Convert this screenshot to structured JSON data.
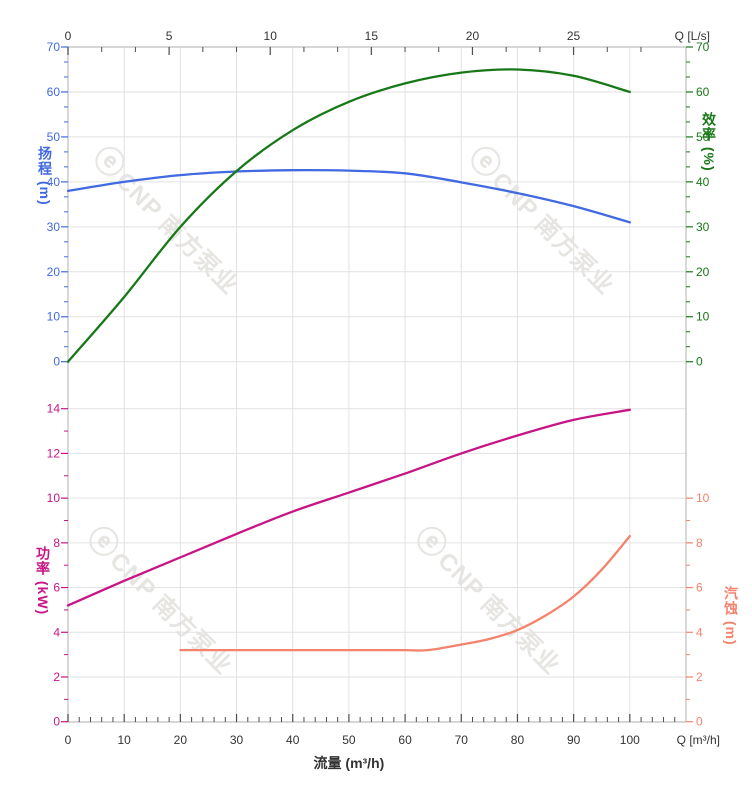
{
  "chart_data": {
    "type": "line",
    "description": "Pump performance curves: head & efficiency (top panel), power & NPSH (bottom panel) versus flow",
    "axes": {
      "flow_ls": {
        "label": "Q [L/s]",
        "ticks": [
          0,
          5,
          10,
          15,
          20,
          25
        ],
        "range": [
          0,
          30.56
        ],
        "position": "top",
        "color": "#333333"
      },
      "flow_m3h": {
        "label": "Q [m³/h]",
        "title": "流量 (m³/h)",
        "ticks": [
          0,
          10,
          20,
          30,
          40,
          50,
          60,
          70,
          80,
          90,
          100
        ],
        "range": [
          0,
          110
        ],
        "position": "bottom",
        "color": "#333333"
      },
      "head": {
        "label": "扬程 (m)",
        "color": "#4169E1",
        "ticks": [
          0,
          10,
          20,
          30,
          40,
          50,
          60,
          70
        ],
        "range": [
          0,
          70
        ],
        "side": "left",
        "panel": "top"
      },
      "efficiency": {
        "label": "效率 (%)",
        "color": "#187818",
        "ticks": [
          0,
          10,
          20,
          30,
          40,
          50,
          60,
          70
        ],
        "range": [
          0,
          70
        ],
        "side": "right",
        "panel": "top"
      },
      "power": {
        "label": "功率 (kW)",
        "color": "#C71585",
        "ticks": [
          0,
          2,
          4,
          6,
          8,
          10,
          12,
          14
        ],
        "range": [
          0,
          14
        ],
        "side": "left",
        "panel": "bottom"
      },
      "npsh": {
        "label": "汽蚀 (m)",
        "color": "#F4836D",
        "ticks": [
          0,
          2,
          4,
          6,
          8,
          10
        ],
        "range": [
          0,
          14
        ],
        "side": "right",
        "panel": "bottom"
      }
    },
    "series": [
      {
        "name": "head",
        "panel": "top",
        "axis": "head",
        "color": "#4169E1",
        "x": [
          0,
          10,
          20,
          30,
          40,
          50,
          60,
          70,
          80,
          90,
          100
        ],
        "y": [
          38.0,
          40.0,
          41.5,
          42.3,
          42.6,
          42.5,
          41.9,
          39.9,
          37.5,
          34.6,
          31.0
        ]
      },
      {
        "name": "efficiency",
        "panel": "top",
        "axis": "efficiency",
        "color": "#187818",
        "x": [
          0,
          10,
          20,
          30,
          40,
          50,
          60,
          70,
          80,
          90,
          100
        ],
        "y": [
          0,
          14.4,
          30.0,
          42.4,
          51.5,
          57.8,
          61.9,
          64.3,
          65.0,
          63.6,
          60.0
        ]
      },
      {
        "name": "power",
        "panel": "bottom",
        "axis": "power",
        "color": "#C71585",
        "x": [
          0,
          10,
          20,
          30,
          40,
          50,
          60,
          70,
          80,
          90,
          100
        ],
        "y": [
          5.2,
          6.3,
          7.35,
          8.4,
          9.4,
          10.25,
          11.1,
          12.0,
          12.8,
          13.5,
          13.95
        ]
      },
      {
        "name": "npsh",
        "panel": "bottom",
        "axis": "npsh",
        "color": "#F4836D",
        "x": [
          20,
          30,
          40,
          50,
          60,
          64,
          70,
          75,
          80,
          85,
          90,
          95,
          100
        ],
        "y": [
          3.2,
          3.2,
          3.2,
          3.2,
          3.2,
          3.2,
          3.45,
          3.7,
          4.1,
          4.75,
          5.6,
          6.8,
          8.3
        ]
      }
    ],
    "grid": true,
    "colors": {
      "gridline": "#E2E2E2",
      "axis_line": "#C8C8C8",
      "x_tick": "#4D4D4D",
      "x_label": "#333333",
      "watermark": "#E7E5E2"
    }
  },
  "watermark": {
    "logo": "ⓔ",
    "text": "CNP 南方泵业"
  }
}
